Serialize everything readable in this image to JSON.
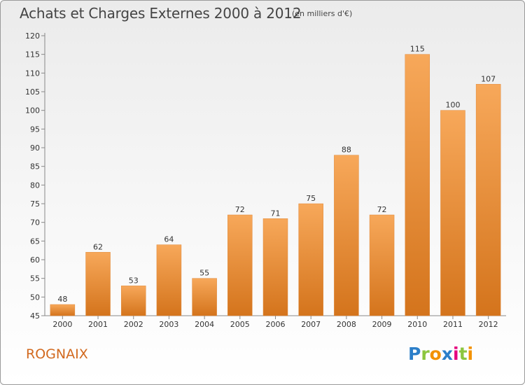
{
  "chart_data": {
    "type": "bar",
    "title": "Achats et Charges Externes 2000 à 2012",
    "subtitle": "(en milliers d'€)",
    "categories": [
      "2000",
      "2001",
      "2002",
      "2003",
      "2004",
      "2005",
      "2006",
      "2007",
      "2008",
      "2009",
      "2010",
      "2011",
      "2012"
    ],
    "values": [
      48,
      62,
      53,
      64,
      55,
      72,
      71,
      75,
      88,
      72,
      115,
      100,
      107
    ],
    "ylim": [
      45,
      120
    ],
    "yticks": [
      45,
      50,
      55,
      60,
      65,
      70,
      75,
      80,
      85,
      90,
      95,
      100,
      105,
      110,
      115,
      120
    ],
    "grid": false,
    "colors": {
      "bar_light": "#f7a85a",
      "bar_dark": "#d4741c",
      "axis": "#888888",
      "text": "#333333"
    }
  },
  "commune": "ROGNAIX",
  "logo": {
    "letters": [
      {
        "char": "P",
        "color": "#2c7fc9"
      },
      {
        "char": "r",
        "color": "#8cc63f"
      },
      {
        "char": "o",
        "color": "#f39200"
      },
      {
        "char": "x",
        "color": "#2c7fc9"
      },
      {
        "char": "i",
        "color": "#e5007d"
      },
      {
        "char": "t",
        "color": "#8cc63f"
      },
      {
        "char": "i",
        "color": "#f39200"
      }
    ]
  }
}
